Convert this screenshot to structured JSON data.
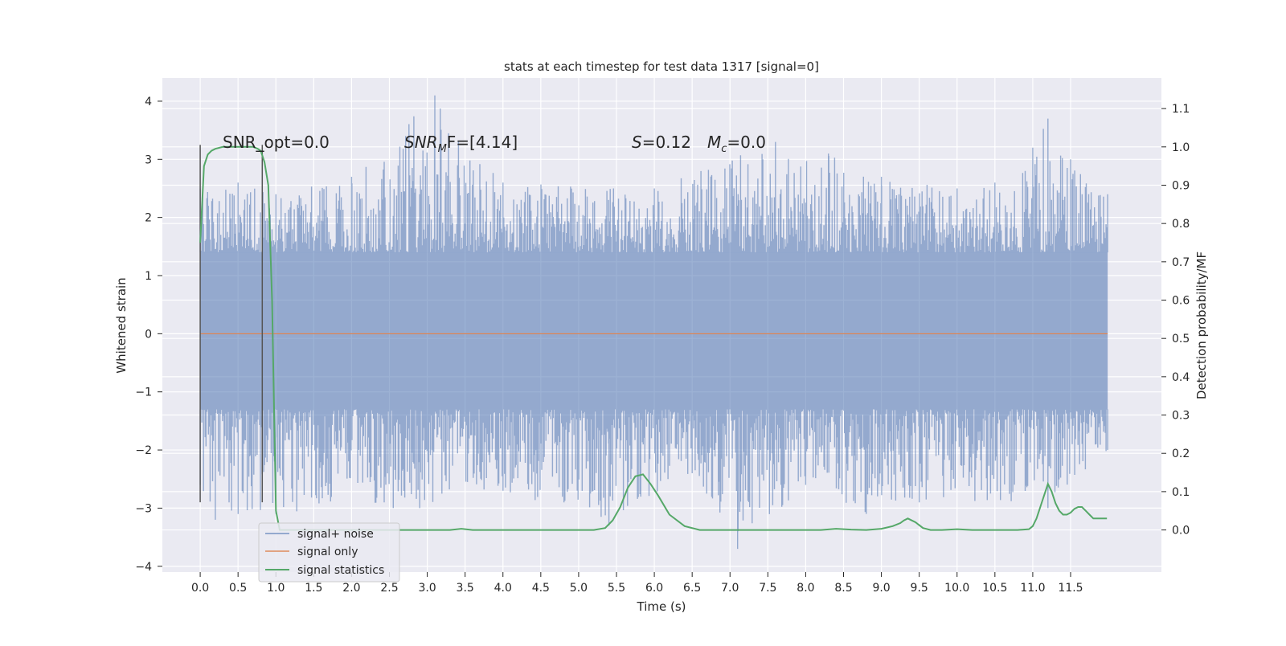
{
  "chart_data": {
    "type": "line",
    "title": "stats at each timestep for test data 1317 [signal=0]",
    "xlabel": "Time (s)",
    "ylabel_left": "Whitened strain",
    "ylabel_right": "Detection probability/MF",
    "xlim": [
      -0.5,
      12.7
    ],
    "ylim_left": [
      -4.1,
      4.4
    ],
    "ylim_right": [
      -0.11,
      1.18
    ],
    "x_ticks": [
      "0.0",
      "0.5",
      "1.0",
      "1.5",
      "2.0",
      "2.5",
      "3.0",
      "3.5",
      "4.0",
      "4.5",
      "5.0",
      "5.5",
      "6.0",
      "6.5",
      "7.0",
      "7.5",
      "8.0",
      "8.5",
      "9.0",
      "9.5",
      "10.0",
      "10.5",
      "11.0",
      "11.5"
    ],
    "y_ticks_left": [
      "4",
      "3",
      "2",
      "1",
      "0",
      "−1",
      "−2",
      "−3",
      "−4"
    ],
    "y_ticks_right": [
      "1.1",
      "1.0",
      "0.9",
      "0.8",
      "0.7",
      "0.6",
      "0.5",
      "0.4",
      "0.3",
      "0.2",
      "0.1",
      "0.0"
    ],
    "grid": true,
    "legend_position": "lower-left",
    "annotations": {
      "snr_opt": "SNR_opt=0.0",
      "snr_mf_symbol": "SNR",
      "snr_mf_sub": "M",
      "snr_mf_rest": "F=[4.14]",
      "s_symbol": "S",
      "s_value": "=0.12",
      "mc_symbol": "M",
      "mc_sub": "c",
      "mc_value": "=0.0"
    },
    "colors": {
      "noise": "#4c72b0",
      "signal": "#dd8452",
      "stats": "#55a868",
      "axes_bg": "#eaeaf2",
      "vlines": "#555555"
    },
    "vlines_x": [
      0.0,
      0.82
    ],
    "series": [
      {
        "name": "signal+ noise",
        "axis": "left",
        "x_range": [
          0.0,
          11.99
        ],
        "envelope_upper": [
          [
            0.0,
            2.5
          ],
          [
            0.5,
            2.6
          ],
          [
            1.0,
            2.4
          ],
          [
            2.0,
            2.7
          ],
          [
            3.1,
            4.1
          ],
          [
            4.0,
            2.6
          ],
          [
            6.0,
            2.5
          ],
          [
            7.6,
            3.3
          ],
          [
            8.3,
            3.1
          ],
          [
            9.0,
            2.7
          ],
          [
            10.0,
            2.5
          ],
          [
            10.5,
            2.6
          ],
          [
            11.0,
            3.2
          ],
          [
            11.2,
            3.7
          ],
          [
            11.5,
            3.0
          ],
          [
            11.99,
            2.4
          ]
        ],
        "envelope_lower": [
          [
            0.0,
            -2.6
          ],
          [
            0.2,
            -3.2
          ],
          [
            1.0,
            -3.1
          ],
          [
            2.9,
            -3.0
          ],
          [
            4.0,
            -2.7
          ],
          [
            5.4,
            -3.3
          ],
          [
            6.5,
            -2.4
          ],
          [
            7.1,
            -3.7
          ],
          [
            8.0,
            -2.6
          ],
          [
            8.8,
            -3.1
          ],
          [
            9.5,
            -2.9
          ],
          [
            11.2,
            -3.0
          ],
          [
            11.99,
            -2.0
          ]
        ],
        "core_range": [
          -1.3,
          1.4
        ]
      },
      {
        "name": "signal only",
        "axis": "left",
        "x": [
          0.0,
          11.99
        ],
        "y": [
          0.0,
          0.0
        ]
      },
      {
        "name": "signal statistics",
        "axis": "right",
        "x": [
          0.0,
          0.05,
          0.1,
          0.15,
          0.2,
          0.3,
          0.4,
          0.5,
          0.6,
          0.7,
          0.76,
          0.8,
          0.85,
          0.9,
          0.95,
          1.0,
          1.05,
          1.1,
          1.5,
          2.0,
          2.5,
          3.0,
          3.3,
          3.45,
          3.6,
          4.0,
          4.5,
          5.0,
          5.2,
          5.35,
          5.45,
          5.55,
          5.65,
          5.75,
          5.85,
          5.95,
          6.05,
          6.2,
          6.4,
          6.6,
          7.0,
          7.5,
          8.0,
          8.2,
          8.4,
          8.6,
          8.8,
          9.0,
          9.15,
          9.25,
          9.3,
          9.35,
          9.45,
          9.55,
          9.65,
          9.8,
          10.0,
          10.2,
          10.5,
          10.8,
          10.95,
          11.0,
          11.05,
          11.1,
          11.15,
          11.2,
          11.25,
          11.3,
          11.35,
          11.4,
          11.45,
          11.5,
          11.55,
          11.6,
          11.65,
          11.7,
          11.75,
          11.8,
          11.9,
          11.98
        ],
        "y": [
          0.75,
          0.95,
          0.98,
          0.99,
          0.995,
          1.0,
          1.0,
          1.0,
          1.0,
          1.0,
          0.995,
          0.99,
          0.96,
          0.9,
          0.6,
          0.05,
          0.0,
          0.0,
          0.0,
          0.0,
          0.0,
          0.0,
          0.0,
          0.003,
          0.0,
          0.0,
          0.0,
          0.0,
          0.0,
          0.005,
          0.025,
          0.06,
          0.11,
          0.14,
          0.145,
          0.12,
          0.09,
          0.04,
          0.01,
          0.0,
          0.0,
          0.0,
          0.0,
          0.0,
          0.003,
          0.001,
          0.0,
          0.003,
          0.01,
          0.018,
          0.025,
          0.03,
          0.02,
          0.005,
          0.0,
          0.0,
          0.002,
          0.0,
          0.0,
          0.0,
          0.002,
          0.01,
          0.03,
          0.06,
          0.09,
          0.12,
          0.1,
          0.07,
          0.05,
          0.04,
          0.04,
          0.045,
          0.055,
          0.06,
          0.06,
          0.05,
          0.04,
          0.03,
          0.03,
          0.03
        ]
      }
    ]
  }
}
